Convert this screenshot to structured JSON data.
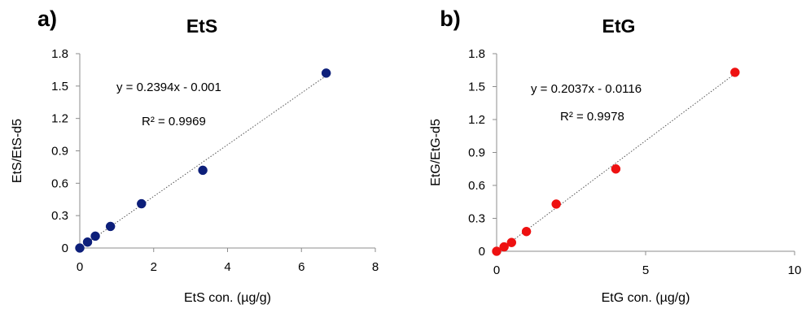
{
  "chart_data": [
    {
      "type": "scatter",
      "panel_label": "a)",
      "title": "EtS",
      "xlabel": "EtS con. (µg/g)",
      "ylabel": "EtS/EtS-d5",
      "xlim": [
        0,
        8
      ],
      "ylim": [
        0,
        1.8
      ],
      "x_ticks": [
        "0",
        "2",
        "4",
        "6",
        "8"
      ],
      "y_ticks": [
        "0",
        "0.3",
        "0.6",
        "0.9",
        "1.2",
        "1.5",
        "1.8"
      ],
      "grid": false,
      "marker_color": "#0d1f7a",
      "trendline": {
        "type": "linear",
        "slope": 0.2394,
        "intercept": -0.001,
        "style": "dotted"
      },
      "equation_text": "y = 0.2394x - 0.001",
      "r2_text": "R² = 0.9969",
      "points": [
        {
          "x": 0,
          "y": 0.0
        },
        {
          "x": 0.21,
          "y": 0.055
        },
        {
          "x": 0.42,
          "y": 0.11
        },
        {
          "x": 0.83,
          "y": 0.2
        },
        {
          "x": 1.67,
          "y": 0.41
        },
        {
          "x": 3.33,
          "y": 0.72
        },
        {
          "x": 6.67,
          "y": 1.62
        }
      ]
    },
    {
      "type": "scatter",
      "panel_label": "b)",
      "title": "EtG",
      "xlabel": "EtG con. (µg/g)",
      "ylabel": "EtG/EtG-d5",
      "xlim": [
        0,
        10
      ],
      "ylim": [
        0,
        1.8
      ],
      "x_ticks": [
        "0",
        "5",
        "10"
      ],
      "y_ticks": [
        "0",
        "0.3",
        "0.6",
        "0.9",
        "1.2",
        "1.5",
        "1.8"
      ],
      "grid": false,
      "marker_color": "#ee1111",
      "trendline": {
        "type": "linear",
        "slope": 0.2037,
        "intercept": -0.0116,
        "style": "dotted"
      },
      "equation_text": "y = 0.2037x - 0.0116",
      "r2_text": "R² = 0.9978",
      "points": [
        {
          "x": 0,
          "y": 0.0
        },
        {
          "x": 0.25,
          "y": 0.04
        },
        {
          "x": 0.5,
          "y": 0.08
        },
        {
          "x": 1.0,
          "y": 0.18
        },
        {
          "x": 2.0,
          "y": 0.43
        },
        {
          "x": 4.0,
          "y": 0.75
        },
        {
          "x": 8.0,
          "y": 1.63
        }
      ]
    }
  ]
}
